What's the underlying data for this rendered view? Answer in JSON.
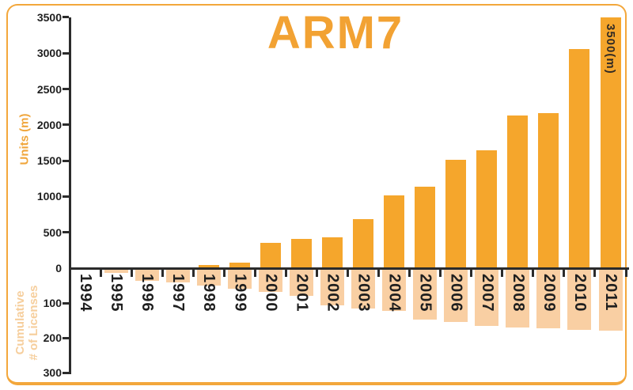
{
  "labels": {
    "units_axis": "Units (m)",
    "cumulative_line1": "Cumulative",
    "cumulative_line2": "# of Licenses"
  },
  "annotation": {
    "text": "3500(m)",
    "category": "2011"
  },
  "chart_data": {
    "type": "bar",
    "title": "ARM7",
    "categories": [
      "1994",
      "1995",
      "1996",
      "1997",
      "1998",
      "1999",
      "2000",
      "2001",
      "2002",
      "2003",
      "2004",
      "2005",
      "2006",
      "2007",
      "2008",
      "2009",
      "2010",
      "2011"
    ],
    "series": [
      {
        "name": "Units (m)",
        "direction": "up",
        "axis_range": [
          0,
          3500
        ],
        "values": [
          0,
          0,
          0,
          0,
          40,
          75,
          355,
          410,
          430,
          685,
          1015,
          1135,
          1515,
          1645,
          2130,
          2165,
          3060,
          3500
        ]
      },
      {
        "name": "Cumulative # of Licenses",
        "direction": "down",
        "axis_range": [
          0,
          300
        ],
        "values": [
          0,
          12,
          33,
          38,
          47,
          56,
          66,
          78,
          105,
          113,
          120,
          145,
          152,
          164,
          168,
          171,
          175,
          177
        ]
      }
    ],
    "y_up_ticks": [
      0,
      500,
      1000,
      1500,
      2000,
      2500,
      3000,
      3500
    ],
    "y_down_ticks": [
      100,
      200,
      300
    ],
    "bar_label": {
      "category": "2011",
      "text": "3500(m)"
    },
    "grid": false,
    "legend": "none",
    "colors": {
      "units_bar": "#F5A62C",
      "licenses_bar": "#F9CFA3",
      "title": "#F2A233",
      "axis": "#2B2B2B",
      "tick_text": "#1F1F1F",
      "units_label": "#F0A63C",
      "licenses_label": "#F6CE9C",
      "frame_border": "#F3A73B",
      "annotation_text": "#322B24"
    }
  }
}
